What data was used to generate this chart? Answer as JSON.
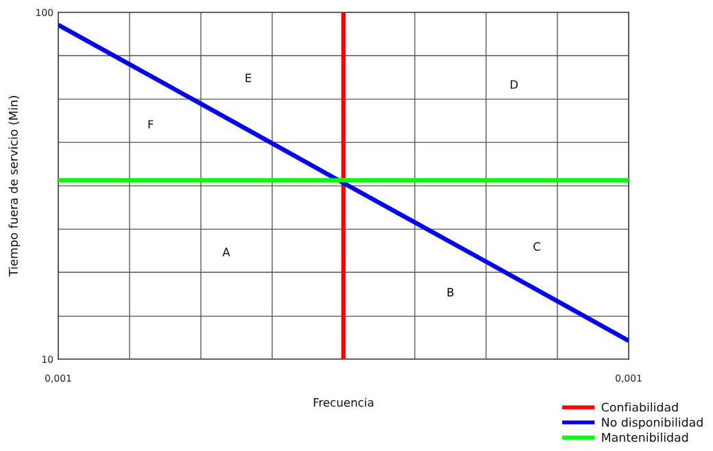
{
  "chart_data": {
    "type": "line",
    "xlabel": "Frecuencia",
    "ylabel": "Tiempo fuera de servicio (Min)",
    "categories": [
      "0,001",
      null,
      null,
      null,
      null,
      null,
      null,
      null,
      "0,001"
    ],
    "ylim": [
      10,
      100
    ],
    "yticks": [
      10,
      {
        "value": 13.3,
        "label": null
      },
      {
        "value": 17.8,
        "label": null
      },
      {
        "value": 23.7,
        "label": null
      },
      {
        "value": 31.6,
        "label": null
      },
      {
        "value": 42.2,
        "label": null
      },
      {
        "value": 56.2,
        "label": null
      },
      {
        "value": 75,
        "label": null
      },
      100
    ],
    "log": "y",
    "grid": true,
    "legend": "bottom right",
    "ref_lines": [
      {
        "axis": "x",
        "label": "Confiabilidad",
        "color": "#ff0000"
      }
    ],
    "series": [
      {
        "name": "No disponibilidad",
        "color": "#0000ff",
        "values": [
          92,
          70.8,
          54.5,
          41.9,
          32.2,
          24.8,
          19.1,
          14.7,
          11.3
        ]
      },
      {
        "name": "Mantenibilidad",
        "color": "#00ff00",
        "values": [
          32.8,
          32.8,
          32.8,
          32.8,
          32.8,
          32.8,
          32.8,
          32.8,
          32.8
        ]
      }
    ],
    "annotations": [
      "A",
      "B",
      "C",
      "D",
      "E",
      "F"
    ]
  }
}
